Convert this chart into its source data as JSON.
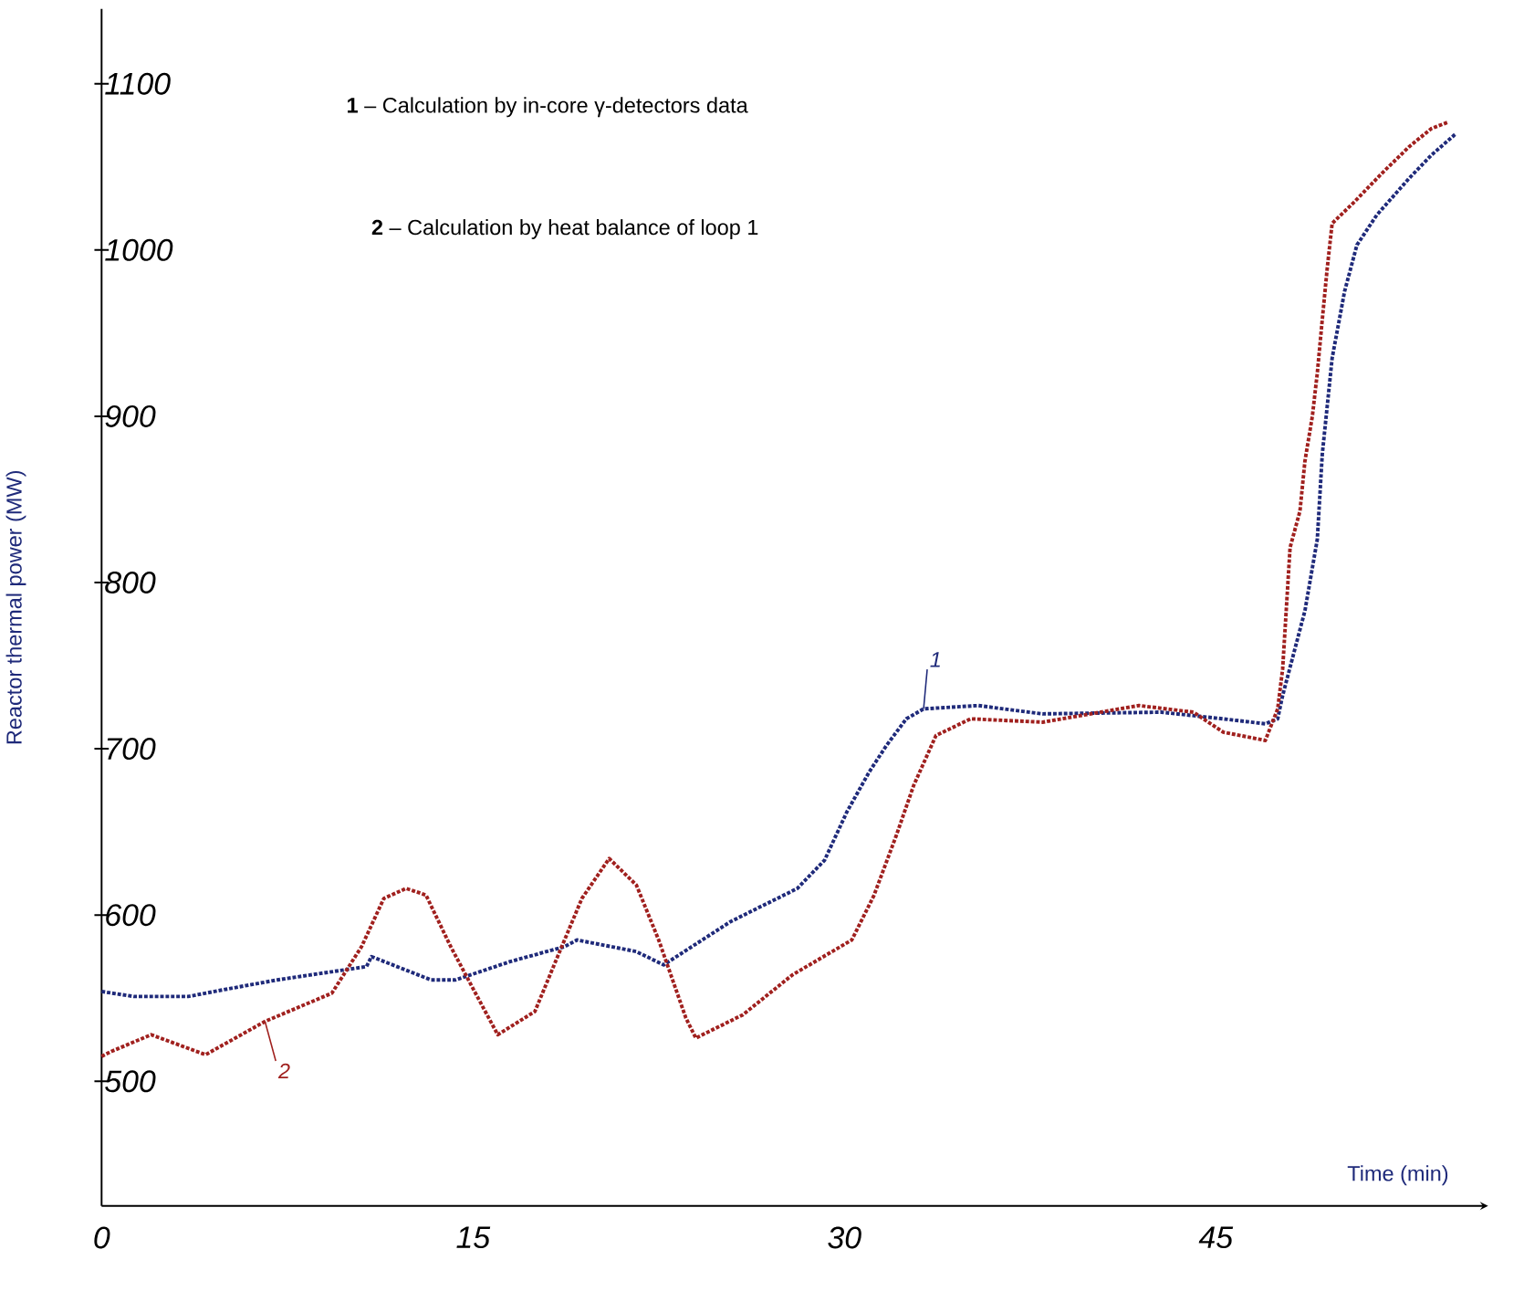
{
  "chart_data": {
    "type": "line",
    "xlabel": "Time  (min)",
    "ylabel": "Reactor thermal power (MW)",
    "xlim": [
      0,
      56
    ],
    "ylim": [
      425,
      1145
    ],
    "xticks": [
      0,
      15,
      30,
      45
    ],
    "yticks": [
      500,
      600,
      700,
      800,
      900,
      1000,
      1100
    ],
    "line_style": "dotted",
    "marker": "none",
    "grid": false,
    "annotations": [
      "**1** – Calculation by in-core γ-detectors data",
      "**2** – Calculation by heat balance of loop 1",
      {
        "text": "1",
        "x": 33.2,
        "y": 724
      },
      {
        "text": "2",
        "x": 6.6,
        "y": 536
      }
    ],
    "series": [
      {
        "color": "#1f2a7a",
        "x": [
          0,
          1.3,
          3.5,
          4.9,
          7.1,
          10.7,
          10.9,
          13.3,
          14.3,
          16.5,
          18.7,
          19.2,
          21.6,
          22.7,
          25.4,
          28.1,
          29.2,
          30.1,
          31.0,
          31.7,
          32.5,
          33.2,
          35.4,
          38.0,
          42.8,
          45.3,
          47.0,
          47.5,
          47.7,
          48.6,
          49.1,
          49.3,
          49.7,
          50.2,
          50.7,
          51.5,
          52.8,
          53.7,
          54.7
        ],
        "values": [
          554,
          551,
          551,
          555,
          561,
          569,
          575,
          561,
          561,
          572,
          581,
          585,
          578,
          570,
          596,
          616,
          633,
          662,
          686,
          702,
          718,
          724,
          726,
          721,
          722,
          718,
          715,
          718,
          732,
          783,
          826,
          877,
          935,
          975,
          1003,
          1021,
          1043,
          1057,
          1070
        ]
      },
      {
        "color": "#a0201e",
        "x": [
          0,
          0.4,
          2.0,
          4.2,
          6.6,
          9.3,
          10.5,
          11.4,
          12.3,
          13.1,
          14.1,
          15.1,
          16.0,
          17.5,
          18.5,
          19.4,
          20.5,
          21.6,
          22.5,
          23.6,
          24.0,
          25.9,
          27.9,
          30.3,
          31.2,
          32.1,
          32.8,
          33.7,
          35.1,
          38.0,
          41.9,
          44.1,
          45.3,
          47.0,
          47.5,
          47.7,
          48.0,
          48.4,
          48.6,
          48.9,
          49.1,
          49.3,
          49.5,
          49.7,
          50.6,
          51.7,
          52.8,
          53.7,
          54.4
        ],
        "values": [
          515,
          518,
          528,
          516,
          536,
          553,
          581,
          610,
          616,
          612,
          581,
          553,
          528,
          542,
          578,
          610,
          634,
          618,
          585,
          538,
          526,
          540,
          564,
          585,
          612,
          648,
          678,
          708,
          718,
          716,
          726,
          722,
          710,
          705,
          724,
          748,
          821,
          843,
          873,
          900,
          926,
          958,
          989,
          1016,
          1029,
          1046,
          1062,
          1073,
          1077
        ]
      }
    ]
  }
}
